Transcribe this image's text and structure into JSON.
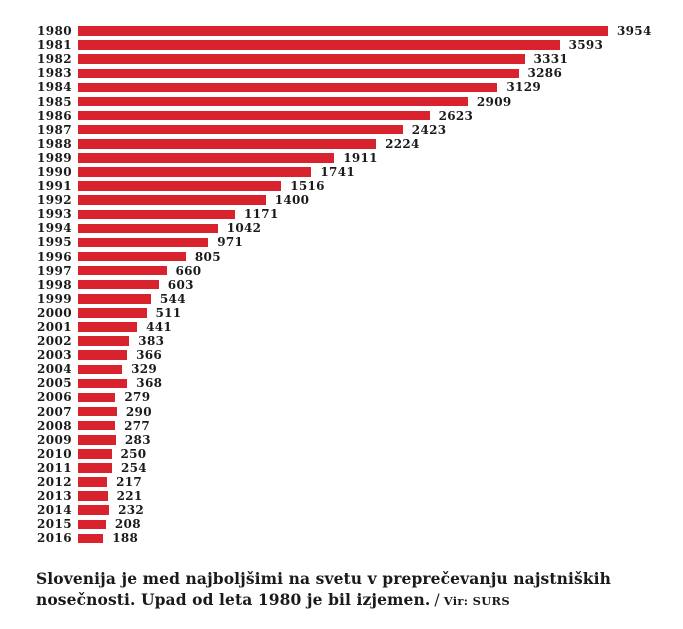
{
  "chart_data": {
    "type": "bar",
    "orientation": "horizontal",
    "title": "",
    "xlabel": "",
    "ylabel": "",
    "categories": [
      "1980",
      "1981",
      "1982",
      "1983",
      "1984",
      "1985",
      "1986",
      "1987",
      "1988",
      "1989",
      "1990",
      "1991",
      "1992",
      "1993",
      "1994",
      "1995",
      "1996",
      "1997",
      "1998",
      "1999",
      "2000",
      "2001",
      "2002",
      "2003",
      "2004",
      "2005",
      "2006",
      "2007",
      "2008",
      "2009",
      "2010",
      "2011",
      "2012",
      "2013",
      "2014",
      "2015",
      "2016"
    ],
    "values": [
      3954,
      3593,
      3331,
      3286,
      3129,
      2909,
      2623,
      2423,
      2224,
      1911,
      1741,
      1516,
      1400,
      1171,
      1042,
      971,
      805,
      660,
      603,
      544,
      511,
      441,
      383,
      366,
      329,
      368,
      279,
      290,
      277,
      283,
      250,
      254,
      217,
      221,
      232,
      208,
      188
    ],
    "xlim": [
      0,
      3954
    ],
    "value_labels": true,
    "grid": false,
    "legend": false,
    "bar_color": "#d8232e"
  },
  "colors": {
    "bar": "#d8232e",
    "text": "#1a1a1a",
    "background": "#ffffff"
  },
  "caption": {
    "line1": "Slovenija je med najboljšimi na svetu v preprečevanju najstniških",
    "line2": "nosečnosti. Upad od leta 1980 je bil izjemen.",
    "separator": "/",
    "source": "Vir: SURS"
  }
}
